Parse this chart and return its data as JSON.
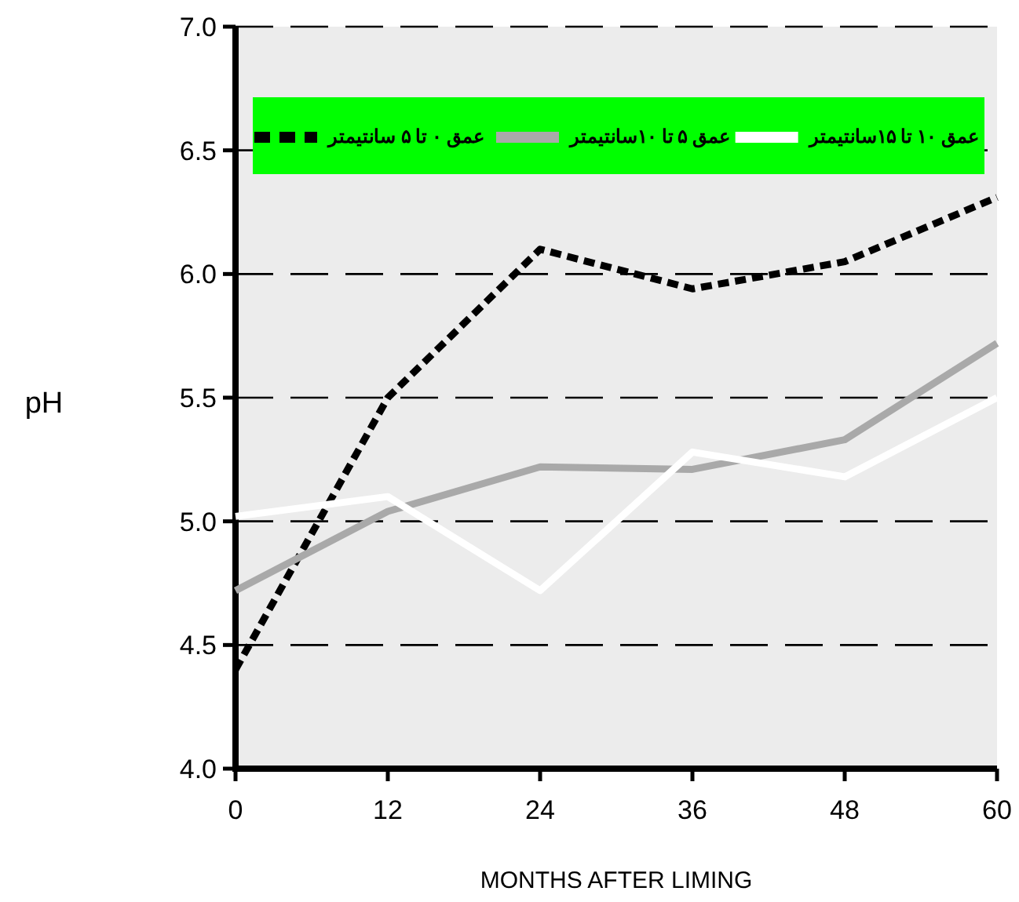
{
  "chart_data": {
    "type": "line",
    "xlabel": "MONTHS AFTER LIMING",
    "ylabel": "pH",
    "x": [
      0,
      12,
      24,
      36,
      48,
      60
    ],
    "series": [
      {
        "name": "عمق ۰ تا ۵ سانتیمتر",
        "color": "#000000",
        "line_style": "dashed",
        "values": [
          4.4,
          5.5,
          6.1,
          5.94,
          6.05,
          6.31
        ]
      },
      {
        "name": "عمق ۵ تا ۱۰سانتیمتر",
        "color": "#a9a9a9",
        "line_style": "solid",
        "values": [
          4.72,
          5.04,
          5.22,
          5.21,
          5.33,
          5.72
        ]
      },
      {
        "name": "عمق ۱۰ تا ۱۵سانتیمتر",
        "color": "#ffffff",
        "line_style": "solid",
        "values": [
          5.02,
          5.1,
          4.72,
          5.28,
          5.18,
          5.5
        ]
      }
    ],
    "xlim": [
      0,
      60
    ],
    "xticks": [
      0,
      12,
      24,
      36,
      48,
      60
    ],
    "ylim": [
      4,
      7
    ],
    "yticks": [
      {
        "value": 4,
        "label": "4.0"
      },
      {
        "value": 4.5,
        "label": "4.5"
      },
      {
        "value": 5,
        "label": "5.0"
      },
      {
        "value": 5.5,
        "label": "5.5"
      },
      {
        "value": 6,
        "label": "6.0"
      },
      {
        "value": 6.5,
        "label": "6.5"
      },
      {
        "value": 7,
        "label": "7.0"
      }
    ],
    "grid": "y",
    "legend": "top",
    "marker": "none"
  }
}
